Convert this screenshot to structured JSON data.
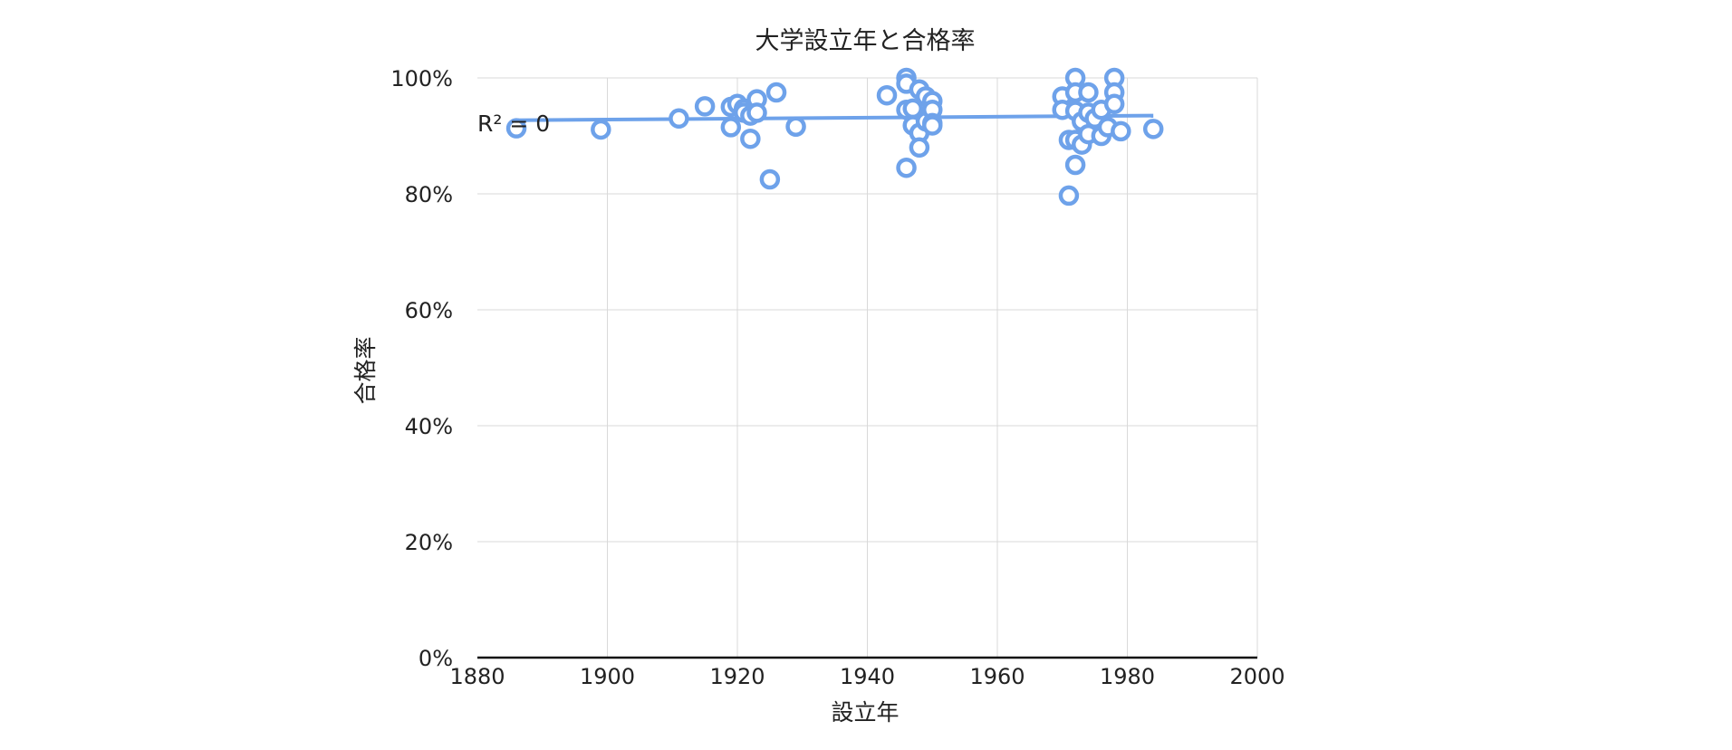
{
  "chart_data": {
    "type": "scatter",
    "title": "大学設立年と合格率",
    "xlabel": "設立年",
    "ylabel": "合格率",
    "xlim": [
      1880,
      2000
    ],
    "ylim": [
      0,
      1
    ],
    "x_ticks": [
      1880,
      1900,
      1920,
      1940,
      1960,
      1980,
      2000
    ],
    "y_ticks": [
      0,
      0.2,
      0.4,
      0.6,
      0.8,
      1.0
    ],
    "x_tick_labels": [
      "1880",
      "1900",
      "1920",
      "1940",
      "1960",
      "1980",
      "2000"
    ],
    "y_tick_labels": [
      "0%",
      "20%",
      "40%",
      "60%",
      "80%",
      "100%"
    ],
    "grid": true,
    "marker_color": "#6ea2ea",
    "trendline": {
      "label": "R² = 0",
      "x": [
        1886,
        1984
      ],
      "y": [
        0.927,
        0.935
      ]
    },
    "points": [
      {
        "x": 1886,
        "y": 0.913
      },
      {
        "x": 1899,
        "y": 0.911
      },
      {
        "x": 1911,
        "y": 0.93
      },
      {
        "x": 1915,
        "y": 0.951
      },
      {
        "x": 1919,
        "y": 0.95
      },
      {
        "x": 1919,
        "y": 0.915
      },
      {
        "x": 1920,
        "y": 0.955
      },
      {
        "x": 1921,
        "y": 0.947
      },
      {
        "x": 1921,
        "y": 0.94
      },
      {
        "x": 1922,
        "y": 0.935
      },
      {
        "x": 1922,
        "y": 0.895
      },
      {
        "x": 1923,
        "y": 0.963
      },
      {
        "x": 1923,
        "y": 0.94
      },
      {
        "x": 1925,
        "y": 0.825
      },
      {
        "x": 1926,
        "y": 0.975
      },
      {
        "x": 1929,
        "y": 0.916
      },
      {
        "x": 1943,
        "y": 0.97
      },
      {
        "x": 1946,
        "y": 1.0
      },
      {
        "x": 1946,
        "y": 0.99
      },
      {
        "x": 1946,
        "y": 0.945
      },
      {
        "x": 1946,
        "y": 0.845
      },
      {
        "x": 1947,
        "y": 0.947
      },
      {
        "x": 1947,
        "y": 0.918
      },
      {
        "x": 1948,
        "y": 0.98
      },
      {
        "x": 1948,
        "y": 0.905
      },
      {
        "x": 1948,
        "y": 0.88
      },
      {
        "x": 1949,
        "y": 0.968
      },
      {
        "x": 1949,
        "y": 0.925
      },
      {
        "x": 1950,
        "y": 0.96
      },
      {
        "x": 1950,
        "y": 0.945
      },
      {
        "x": 1950,
        "y": 0.922
      },
      {
        "x": 1950,
        "y": 0.918
      },
      {
        "x": 1970,
        "y": 0.968
      },
      {
        "x": 1970,
        "y": 0.945
      },
      {
        "x": 1971,
        "y": 0.893
      },
      {
        "x": 1971,
        "y": 0.797
      },
      {
        "x": 1972,
        "y": 1.0
      },
      {
        "x": 1972,
        "y": 0.975
      },
      {
        "x": 1972,
        "y": 0.943
      },
      {
        "x": 1972,
        "y": 0.893
      },
      {
        "x": 1972,
        "y": 0.85
      },
      {
        "x": 1973,
        "y": 0.925
      },
      {
        "x": 1973,
        "y": 0.885
      },
      {
        "x": 1974,
        "y": 0.975
      },
      {
        "x": 1974,
        "y": 0.94
      },
      {
        "x": 1974,
        "y": 0.903
      },
      {
        "x": 1975,
        "y": 0.93
      },
      {
        "x": 1976,
        "y": 0.945
      },
      {
        "x": 1976,
        "y": 0.9
      },
      {
        "x": 1977,
        "y": 0.915
      },
      {
        "x": 1978,
        "y": 1.0
      },
      {
        "x": 1978,
        "y": 0.975
      },
      {
        "x": 1978,
        "y": 0.955
      },
      {
        "x": 1979,
        "y": 0.908
      },
      {
        "x": 1984,
        "y": 0.912
      }
    ]
  }
}
